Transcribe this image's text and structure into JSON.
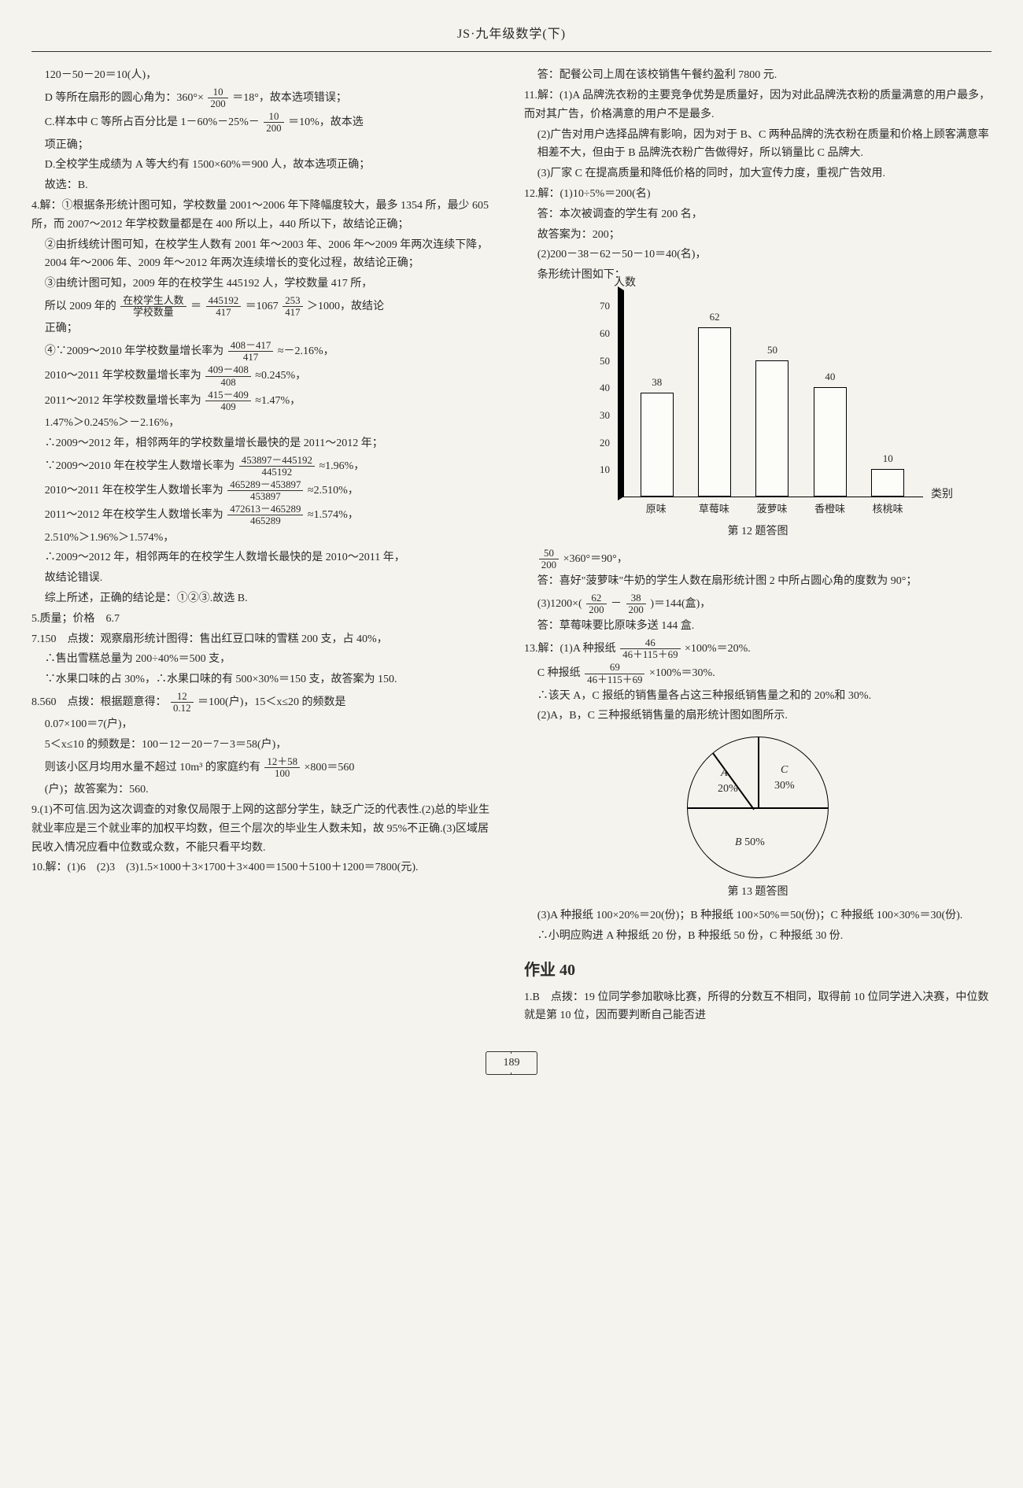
{
  "header": "JS·九年级数学(下)",
  "page_number": "189",
  "left": {
    "l1": "120－50－20＝10(人)，",
    "l2a": "D 等所在扇形的圆心角为：360°×",
    "l2f_num": "10",
    "l2f_den": "200",
    "l2b": "＝18°，故本选项错误；",
    "l3a": "C.样本中 C 等所占百分比是 1－60%－25%－",
    "l3f_num": "10",
    "l3f_den": "200",
    "l3b": "＝10%，故本选",
    "l4": "项正确；",
    "l5": "D.全校学生成绩为 A 等大约有 1500×60%＝900 人，故本选项正确；",
    "l6": "故选：B.",
    "q4": "4.解：①根据条形统计图可知，学校数量 2001～2006 年下降幅度较大，最多 1354 所，最少 605 所，而 2007～2012 年学校数量都是在 400 所以上，440 所以下，故结论正确；",
    "q4b": "②由折线统计图可知，在校学生人数有 2001 年～2003 年、2006 年～2009 年两次连续下降，2004 年～2006 年、2009 年～2012 年两次连续增长的变化过程，故结论正确；",
    "q4c": "③由统计图可知，2009 年的在校学生 445192 人，学校数量 417 所，",
    "q4d_a": "所以 2009 年的",
    "q4d_f1n": "在校学生人数",
    "q4d_f1d": "学校数量",
    "q4d_b": "＝",
    "q4d_f2n": "445192",
    "q4d_f2d": "417",
    "q4d_c": "＝1067",
    "q4d_f3n": "253",
    "q4d_f3d": "417",
    "q4d_d": "＞1000，故结论",
    "q4e": "正确；",
    "q4f_a": "④∵2009～2010 年学校数量增长率为",
    "q4f_f1n": "408－417",
    "q4f_f1d": "417",
    "q4f_b": "≈－2.16%，",
    "q4g_a": "2010～2011 年学校数量增长率为",
    "q4g_f1n": "409－408",
    "q4g_f1d": "408",
    "q4g_b": "≈0.245%，",
    "q4h_a": "2011～2012 年学校数量增长率为",
    "q4h_f1n": "415－409",
    "q4h_f1d": "409",
    "q4h_b": "≈1.47%，",
    "q4i": "1.47%＞0.245%＞－2.16%，",
    "q4j": "∴2009～2012 年，相邻两年的学校数量增长最快的是 2011～2012 年；",
    "q4k_a": "∵2009～2010 年在校学生人数增长率为",
    "q4k_f1n": "453897－445192",
    "q4k_f1d": "445192",
    "q4k_b": "≈1.96%，",
    "q4l_a": "2010～2011 年在校学生人数增长率为",
    "q4l_f1n": "465289－453897",
    "q4l_f1d": "453897",
    "q4l_b": "≈2.510%，",
    "q4m_a": "2011～2012 年在校学生人数增长率为",
    "q4m_f1n": "472613－465289",
    "q4m_f1d": "465289",
    "q4m_b": "≈1.574%，",
    "q4n": "2.510%＞1.96%＞1.574%，",
    "q4o": "∴2009～2012 年，相邻两年的在校学生人数增长最快的是 2010～2011 年，",
    "q4p": "故结论错误.",
    "q4q": "综上所述，正确的结论是：①②③.故选 B.",
    "q5": "5.质量；价格　6.7",
    "q7": "7.150　点拨：观察扇形统计图得：售出红豆口味的雪糕 200 支，占 40%，",
    "q7b": "∴售出雪糕总量为 200÷40%＝500 支，",
    "q7c": "∵水果口味的占 30%，∴水果口味的有 500×30%＝150 支，故答案为 150.",
    "q8_a": "8.560　点拨：根据题意得：",
    "q8_f1n": "12",
    "q8_f1d": "0.12",
    "q8_b": "＝100(户)，15＜x≤20 的频数是",
    "q8c": "0.07×100＝7(户)，",
    "q8d": "5＜x≤10 的频数是：100－12－20－7－3＝58(户)，",
    "q8e_a": "则该小区月均用水量不超过 10m³ 的家庭约有",
    "q8e_f1n": "12＋58",
    "q8e_f1d": "100",
    "q8e_b": "×800＝560",
    "q8f": "(户)；故答案为：560.",
    "q9": "9.(1)不可信.因为这次调查的对象仅局限于上网的这部分学生，缺乏广泛的代表性.(2)总的毕业生就业率应是三个就业率的加权平均数，但三个层次的毕业生人数未知，故 95%不正确.(3)区域居民收入情况应看中位数或众数，不能只看平均数.",
    "q10": "10.解：(1)6　(2)3　(3)1.5×1000＋3×1700＋3×400＝1500＋5100＋1200＝7800(元)."
  },
  "right": {
    "r1": "答：配餐公司上周在该校销售午餐约盈利 7800 元.",
    "q11": "11.解：(1)A 品牌洗衣粉的主要竞争优势是质量好，因为对此品牌洗衣粉的质量满意的用户最多，而对其广告，价格满意的用户不是最多.",
    "q11b": "(2)广告对用户选择品牌有影响，因为对于 B、C 两种品牌的洗衣粉在质量和价格上顾客满意率相差不大，但由于 B 品牌洗衣粉广告做得好，所以销量比 C 品牌大.",
    "q11c": "(3)厂家 C 在提高质量和降低价格的同时，加大宣传力度，重视广告效用.",
    "q12": "12.解：(1)10÷5%＝200(名)",
    "q12b": "答：本次被调查的学生有 200 名，",
    "q12c": "故答案为：200；",
    "q12d": "(2)200－38－62－50－10＝40(名)，",
    "q12e": "条形统计图如下：",
    "chart": {
      "ytitle": "人数",
      "xtitle": "类别",
      "ymax": 75,
      "ticks": [
        10,
        20,
        30,
        40,
        50,
        60,
        70
      ],
      "categories": [
        "原味",
        "草莓味",
        "菠萝味",
        "香橙味",
        "核桃味"
      ],
      "values": [
        38,
        62,
        50,
        40,
        10
      ],
      "caption": "第 12 题答图"
    },
    "q12f_a": "",
    "q12f_f1n": "50",
    "q12f_f1d": "200",
    "q12f_b": "×360°＝90°，",
    "q12g": "答：喜好\"菠萝味\"牛奶的学生人数在扇形统计图 2 中所占圆心角的度数为 90°；",
    "q12h_a": "(3)1200×(",
    "q12h_f1n": "62",
    "q12h_f1d": "200",
    "q12h_mid": "－",
    "q12h_f2n": "38",
    "q12h_f2d": "200",
    "q12h_b": ")＝144(盒)，",
    "q12i": "答：草莓味要比原味多送 144 盒.",
    "q13_a": "13.解：(1)A 种报纸",
    "q13_f1n": "46",
    "q13_f1d": "46＋115＋69",
    "q13_b": "×100%＝20%.",
    "q13c_a": "C 种报纸",
    "q13c_f1n": "69",
    "q13c_f1d": "46＋115＋69",
    "q13c_b": "×100%＝30%.",
    "q13d": "∴该天 A，C 报纸的销售量各占这三种报纸销售量之和的 20%和 30%.",
    "q13e": "(2)A，B，C 三种报纸销售量的扇形统计图如图所示.",
    "pie": {
      "labels": {
        "a": "A",
        "b": "B",
        "c": "C"
      },
      "pct": {
        "a": "20%",
        "b": "50%",
        "c": "30%"
      },
      "caption": "第 13 题答图"
    },
    "q13f": "(3)A 种报纸 100×20%＝20(份)；B 种报纸 100×50%＝50(份)；C 种报纸 100×30%＝30(份).",
    "q13g": "∴小明应购进 A 种报纸 20 份，B 种报纸 50 份，C 种报纸 30 份.",
    "hw_title": "作业 40",
    "hw1": "1.B　点拨：19 位同学参加歌咏比赛，所得的分数互不相同，取得前 10 位同学进入决赛，中位数就是第 10 位，因而要判断自己能否进"
  }
}
